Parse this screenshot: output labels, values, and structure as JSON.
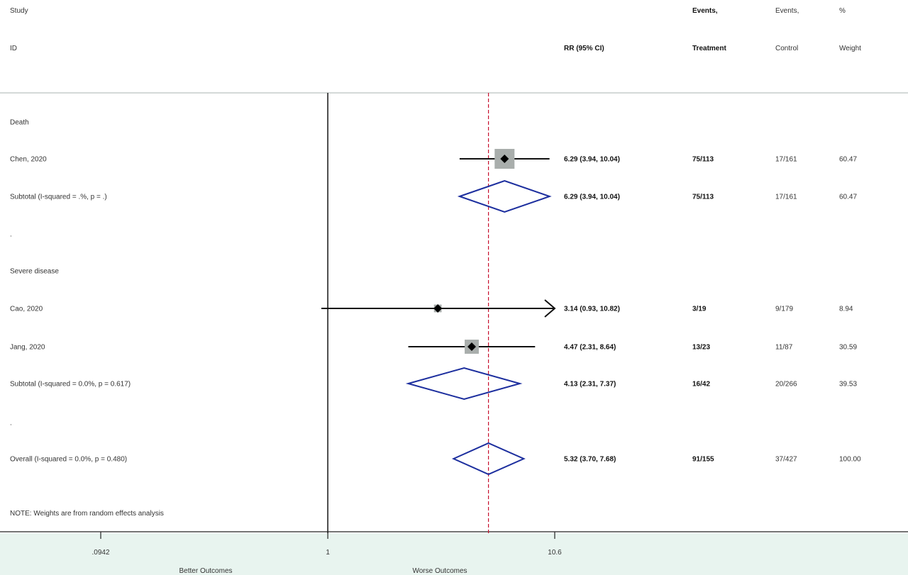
{
  "chart_data": {
    "type": "forest",
    "scale": "log",
    "x_ticks": [
      ".0942",
      "1",
      "10.6"
    ],
    "x_tick_values": [
      0.0942,
      1,
      10.6
    ],
    "xlim": [
      0.0942,
      10.6
    ],
    "overall_ref": 5.32,
    "x_footer": [
      "Better Outcomes",
      "Worse Outcomes"
    ],
    "header": {
      "study1": "Study",
      "study2": "ID",
      "rr": "RR (95% CI)",
      "events_t1": "Events,",
      "events_t2": "Treatment",
      "events_c1": "Events,",
      "events_c2": "Control",
      "weight1": "%",
      "weight2": "Weight"
    },
    "rows": [
      {
        "label": "Death",
        "kind": "group"
      },
      {
        "label": "Chen, 2020",
        "kind": "study",
        "rr": 6.29,
        "lo": 3.94,
        "hi": 10.04,
        "ci_text": "6.29 (3.94, 10.04)",
        "events_t": "75/113",
        "events_c": "17/161",
        "weight": "60.47"
      },
      {
        "label": "Subtotal  (I-squared = .%, p = .)",
        "kind": "subtotal",
        "rr": 6.29,
        "lo": 3.94,
        "hi": 10.04,
        "ci_text": "6.29 (3.94, 10.04)",
        "events_t": "75/113",
        "events_c": "17/161",
        "weight": "60.47"
      },
      {
        "label": ".",
        "kind": "spacer"
      },
      {
        "label": "Severe disease",
        "kind": "group"
      },
      {
        "label": "Cao, 2020",
        "kind": "study",
        "rr": 3.14,
        "lo": 0.93,
        "hi": 10.82,
        "ci_text": "3.14 (0.93, 10.82)",
        "events_t": "3/19",
        "events_c": "9/179",
        "weight": "8.94"
      },
      {
        "label": "Jang, 2020",
        "kind": "study",
        "rr": 4.47,
        "lo": 2.31,
        "hi": 8.64,
        "ci_text": "4.47 (2.31, 8.64)",
        "events_t": "13/23",
        "events_c": "11/87",
        "weight": "30.59"
      },
      {
        "label": "Subtotal  (I-squared = 0.0%, p = 0.617)",
        "kind": "subtotal",
        "rr": 4.13,
        "lo": 2.31,
        "hi": 7.37,
        "ci_text": "4.13 (2.31, 7.37)",
        "events_t": "16/42",
        "events_c": "20/266",
        "weight": "39.53"
      },
      {
        "label": ".",
        "kind": "spacer"
      },
      {
        "label": "Overall  (I-squared = 0.0%, p = 0.480)",
        "kind": "overall",
        "rr": 5.32,
        "lo": 3.7,
        "hi": 7.68,
        "ci_text": "5.32 (3.70, 7.68)",
        "events_t": "91/155",
        "events_c": "37/427",
        "weight": "100.00"
      }
    ],
    "note": "NOTE: Weights are from random effects analysis"
  }
}
